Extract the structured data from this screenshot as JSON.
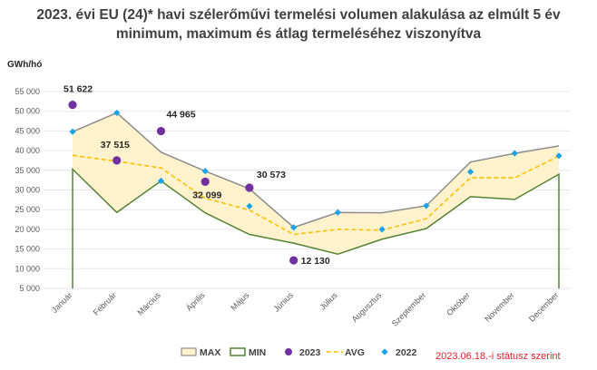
{
  "title": "2023. évi EU (24)* havi szélerőművi termelési volumen alakulása az elmúlt 5 év minimum, maximum és átlag termeléséhez viszonyítva",
  "unit_label": "GWh/hó",
  "status_note": "2023.06.18.-i státusz szerint",
  "colors": {
    "max_fill": "#fff2cc",
    "max_line": "#8c8c8c",
    "min_line": "#548235",
    "s2023": "#7030a0",
    "avg": "#ffc000",
    "s2022": "#1aa3e8",
    "note": "#e0202a"
  },
  "chart_data": {
    "type": "area",
    "categories": [
      "Január",
      "Február",
      "Március",
      "Április",
      "Május",
      "Június",
      "Július",
      "Augusztus",
      "Szeptember",
      "Október",
      "November",
      "December"
    ],
    "ylim": [
      5000,
      55000
    ],
    "yticks": [
      "5 000",
      "10 000",
      "15 000",
      "20 000",
      "25 000",
      "30 000",
      "35 000",
      "40 000",
      "45 000",
      "50 000",
      "55 000"
    ],
    "ylabel": "GWh/hó",
    "series": [
      {
        "name": "MAX",
        "values": [
          44800,
          49600,
          39600,
          34800,
          30300,
          20500,
          24300,
          24200,
          26000,
          37100,
          39300,
          41200
        ]
      },
      {
        "name": "MIN",
        "values": [
          35300,
          24300,
          32300,
          24200,
          18700,
          16500,
          13700,
          17500,
          20200,
          28300,
          27600,
          34000
        ]
      },
      {
        "name": "2023",
        "values": [
          51622,
          37515,
          44965,
          32099,
          30573,
          12130,
          null,
          null,
          null,
          null,
          null,
          null
        ]
      },
      {
        "name": "AVG",
        "values": [
          38800,
          37300,
          35600,
          27900,
          24900,
          18700,
          20000,
          19800,
          22700,
          33100,
          33100,
          38600
        ]
      },
      {
        "name": "2022",
        "values": [
          44800,
          49600,
          32300,
          34800,
          25900,
          20500,
          24300,
          20000,
          26000,
          34600,
          39300,
          38700
        ]
      }
    ],
    "data_labels_2023": [
      "51 622",
      "37 515",
      "44 965",
      "32 099",
      "30 573",
      "12 130"
    ],
    "legend": [
      "MAX",
      "MIN",
      "2023",
      "AVG",
      "2022"
    ],
    "legend_position": "bottom"
  }
}
